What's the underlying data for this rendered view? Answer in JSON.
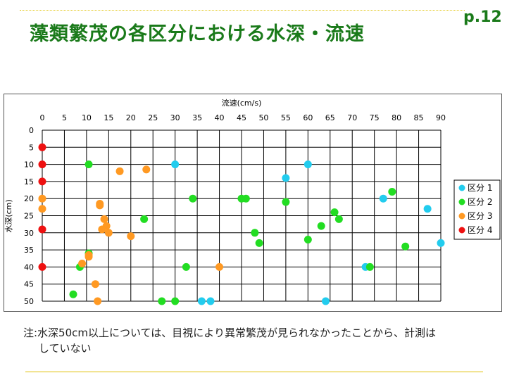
{
  "slide": {
    "title": "藻類繁茂の各区分における水深・流速",
    "page_number": "p.12",
    "note_line1": "注:水深50cm以上については、目視により異常繁茂が見られなかったことから、計測は",
    "note_line2": "していない"
  },
  "chart_data": {
    "type": "scatter",
    "title": "",
    "xlabel": "流速(cm/s)",
    "ylabel": "水深(cm)",
    "xlim": [
      0,
      90
    ],
    "ylim": [
      0,
      50
    ],
    "x_ticks": [
      0,
      5,
      10,
      15,
      20,
      25,
      30,
      35,
      40,
      45,
      50,
      55,
      60,
      65,
      70,
      75,
      80,
      85,
      90
    ],
    "y_ticks": [
      0,
      5,
      10,
      15,
      20,
      25,
      30,
      35,
      40,
      45,
      50
    ],
    "x_axis_position": "top",
    "y_axis_inverted": true,
    "grid": true,
    "legend_position": "right",
    "series": [
      {
        "name": "区分 1",
        "color": "#22ccee",
        "points": [
          [
            30,
            10
          ],
          [
            55,
            14
          ],
          [
            60,
            10
          ],
          [
            77,
            20
          ],
          [
            87,
            23
          ],
          [
            90,
            33
          ],
          [
            73,
            40
          ],
          [
            36,
            50
          ],
          [
            38,
            50
          ],
          [
            64,
            50
          ]
        ]
      },
      {
        "name": "区分 2",
        "color": "#22dd22",
        "points": [
          [
            10.5,
            10
          ],
          [
            34,
            20
          ],
          [
            45,
            20
          ],
          [
            46,
            20
          ],
          [
            55,
            21
          ],
          [
            79,
            18
          ],
          [
            66,
            24
          ],
          [
            67,
            26
          ],
          [
            63,
            28
          ],
          [
            23,
            26
          ],
          [
            48,
            30
          ],
          [
            49,
            33
          ],
          [
            60,
            32
          ],
          [
            82,
            34
          ],
          [
            10.5,
            36
          ],
          [
            8.5,
            40
          ],
          [
            32.5,
            40
          ],
          [
            74,
            40
          ],
          [
            7,
            48
          ],
          [
            27,
            50
          ],
          [
            30,
            50
          ]
        ]
      },
      {
        "name": "区分 3",
        "color": "#ff9922",
        "points": [
          [
            0,
            20
          ],
          [
            0,
            23
          ],
          [
            17.5,
            12
          ],
          [
            23.5,
            11.5
          ],
          [
            13,
            21.5
          ],
          [
            13,
            22
          ],
          [
            14,
            26
          ],
          [
            14.5,
            28
          ],
          [
            13.5,
            29
          ],
          [
            15,
            30
          ],
          [
            20,
            31
          ],
          [
            10.5,
            37
          ],
          [
            10.5,
            36.5
          ],
          [
            9,
            39
          ],
          [
            40,
            40
          ],
          [
            12,
            45
          ],
          [
            12.5,
            50
          ]
        ]
      },
      {
        "name": "区分 4",
        "color": "#ee1111",
        "points": [
          [
            0,
            5
          ],
          [
            0,
            10
          ],
          [
            0,
            15
          ],
          [
            0,
            29
          ],
          [
            0,
            40
          ]
        ]
      }
    ]
  }
}
